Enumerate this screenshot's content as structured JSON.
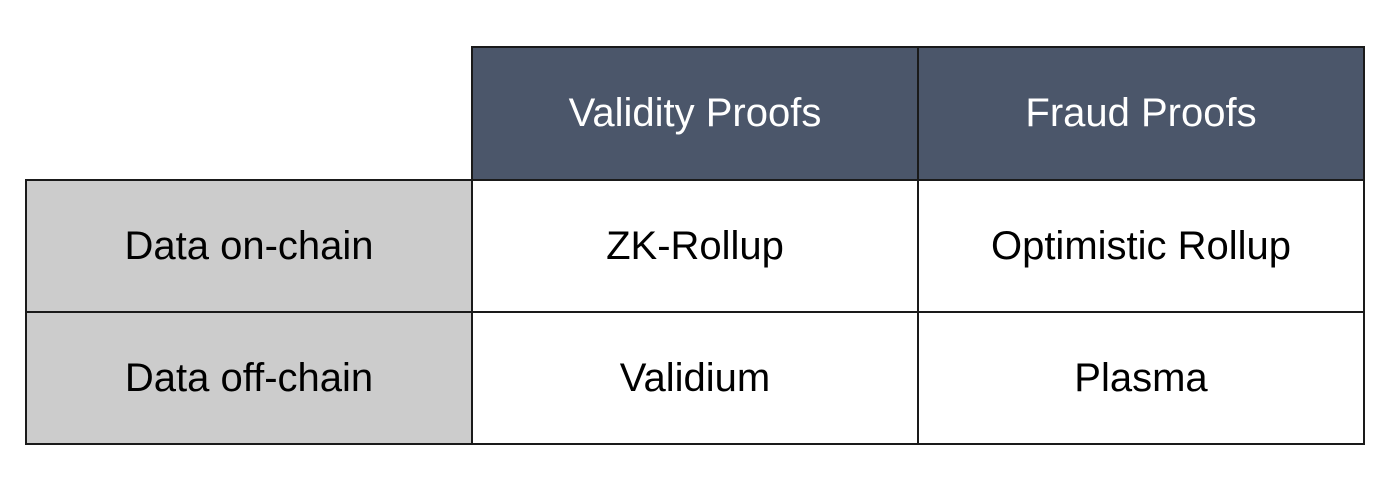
{
  "table": {
    "column_headers": [
      "Validity Proofs",
      "Fraud Proofs"
    ],
    "rows": [
      {
        "header": "Data on-chain",
        "cells": [
          "ZK-Rollup",
          "Optimistic Rollup"
        ]
      },
      {
        "header": "Data off-chain",
        "cells": [
          "Validium",
          "Plasma"
        ]
      }
    ]
  },
  "colors": {
    "column_header_bg": "#4b566a",
    "column_header_text": "#ffffff",
    "row_header_bg": "#cccccc",
    "cell_bg": "#ffffff",
    "border": "#1a1a1a"
  }
}
